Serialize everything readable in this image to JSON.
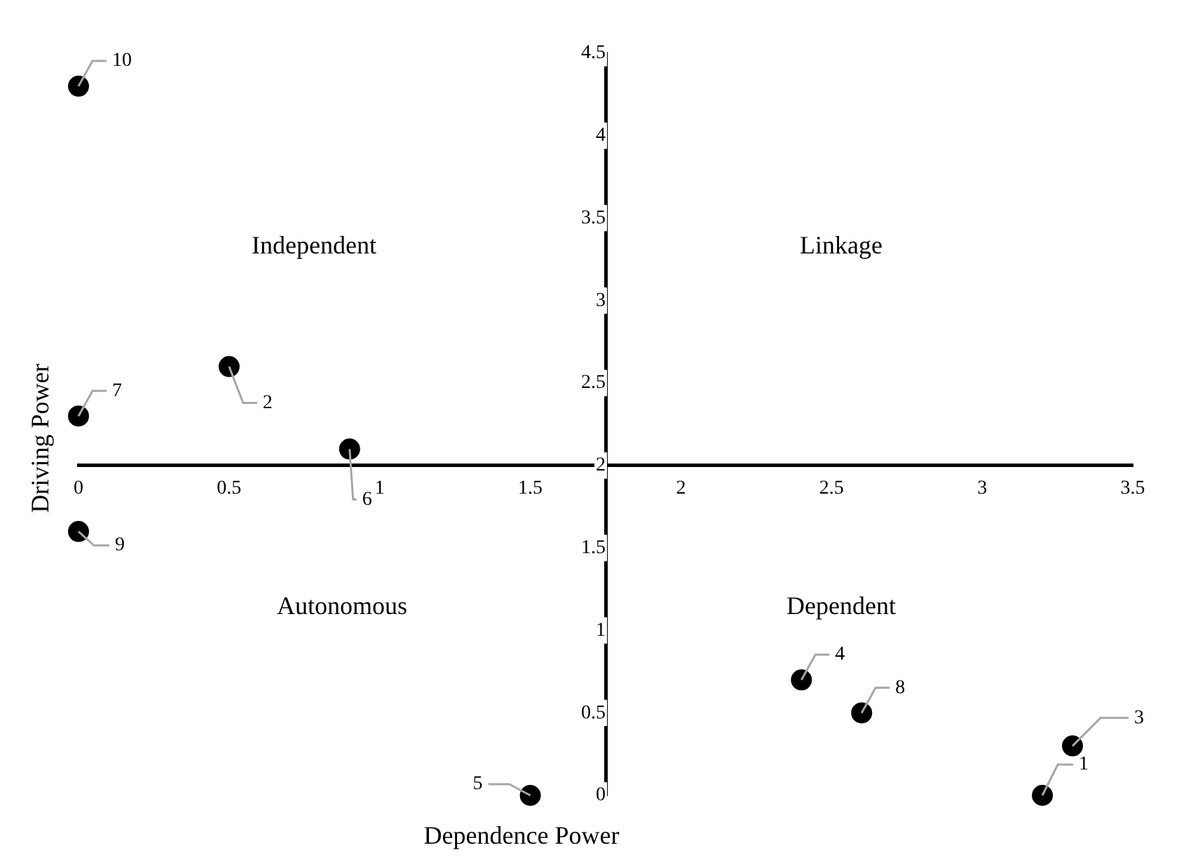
{
  "chart_data": {
    "type": "scatter",
    "xlabel": "Dependence Power",
    "ylabel": "Driving Power",
    "annotations": [
      "Independent",
      "Linkage",
      "Autonomous",
      "Dependent"
    ],
    "series": [
      {
        "name": "1",
        "color": "#000000",
        "x": [
          3.2
        ],
        "values": [
          0
        ]
      },
      {
        "name": "2",
        "color": "#000000",
        "x": [
          0.5
        ],
        "values": [
          2.6
        ]
      },
      {
        "name": "3",
        "color": "#000000",
        "x": [
          3.3
        ],
        "values": [
          0.3
        ]
      },
      {
        "name": "4",
        "color": "#000000",
        "x": [
          2.4
        ],
        "values": [
          0.7
        ]
      },
      {
        "name": "5",
        "color": "#000000",
        "x": [
          1.5
        ],
        "values": [
          0
        ]
      },
      {
        "name": "6",
        "color": "#000000",
        "x": [
          0.9
        ],
        "values": [
          2.1
        ]
      },
      {
        "name": "7",
        "color": "#000000",
        "x": [
          0
        ],
        "values": [
          2.3
        ]
      },
      {
        "name": "8",
        "color": "#000000",
        "x": [
          2.6
        ],
        "values": [
          0.5
        ]
      },
      {
        "name": "9",
        "color": "#000000",
        "x": [
          0
        ],
        "values": [
          1.6
        ]
      },
      {
        "name": "10",
        "color": "#000000",
        "x": [
          0
        ],
        "values": [
          4.3
        ]
      }
    ],
    "xlim": [
      0,
      3.5
    ],
    "xticks": [
      0,
      0.5,
      1,
      1.5,
      2,
      2.5,
      3,
      3.5
    ],
    "ylim": [
      0,
      4.5
    ],
    "yticks": [
      0,
      0.5,
      1,
      1.5,
      2,
      2.5,
      3,
      3.5,
      4,
      4.5
    ],
    "grid": false,
    "legend": false,
    "marker": "circle"
  }
}
